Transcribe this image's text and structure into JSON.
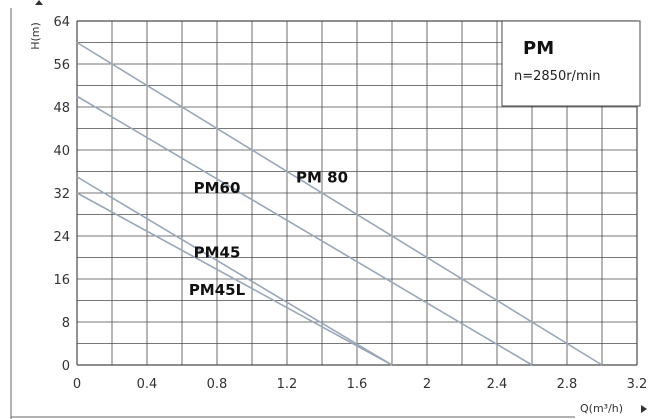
{
  "chart_data": {
    "type": "line",
    "xlabel": "Q(m³/h)",
    "ylabel": "H(m)",
    "xlim": [
      0,
      3.2
    ],
    "ylim": [
      0,
      64
    ],
    "x_ticks": [
      "0",
      "0.4",
      "0.8",
      "1.2",
      "1.6",
      "2",
      "2.4",
      "2.8",
      "3.2"
    ],
    "y_ticks": [
      "0",
      "8",
      "16",
      "24",
      "32",
      "40",
      "48",
      "56",
      "64"
    ],
    "grid": true,
    "legend_box": {
      "title": "PM",
      "subtitle": "n=2850r/min",
      "placement": "top-right"
    },
    "series": [
      {
        "name": "PM 80",
        "x": [
          0,
          3.0
        ],
        "y": [
          60,
          0
        ],
        "label_at": [
          1.4,
          34
        ]
      },
      {
        "name": "PM60",
        "x": [
          0,
          2.6
        ],
        "y": [
          50,
          0
        ],
        "label_at": [
          0.8,
          32
        ]
      },
      {
        "name": "PM45",
        "x": [
          0,
          1.8
        ],
        "y": [
          35,
          0
        ],
        "label_at": [
          0.8,
          20
        ]
      },
      {
        "name": "PM45L",
        "x": [
          0,
          1.8
        ],
        "y": [
          32,
          0
        ],
        "label_at": [
          0.8,
          13
        ]
      }
    ],
    "colors": {
      "line": "#9aa7b8",
      "grid": "#4a4a4a"
    }
  }
}
